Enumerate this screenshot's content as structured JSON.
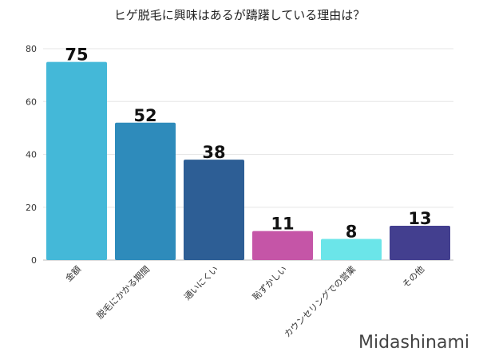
{
  "chart_data": {
    "type": "bar",
    "title": "ヒゲ脱毛に興味はあるが躊躇している理由は？",
    "categories": [
      "金額",
      "脱毛にかかる期間",
      "通いにくい",
      "恥ずかしい",
      "カウンセリングでの営業",
      "その他"
    ],
    "values": [
      75,
      52,
      38,
      11,
      8,
      13
    ],
    "colors": [
      "#44b8d8",
      "#2e8bbb",
      "#2d5e95",
      "#c555a7",
      "#6be5e9",
      "#433f8f"
    ],
    "ylim": [
      0,
      80
    ],
    "yticks": [
      0,
      20,
      40,
      60,
      80
    ],
    "grid": true,
    "xlabel": "",
    "ylabel": ""
  },
  "watermark": "Midashinami"
}
